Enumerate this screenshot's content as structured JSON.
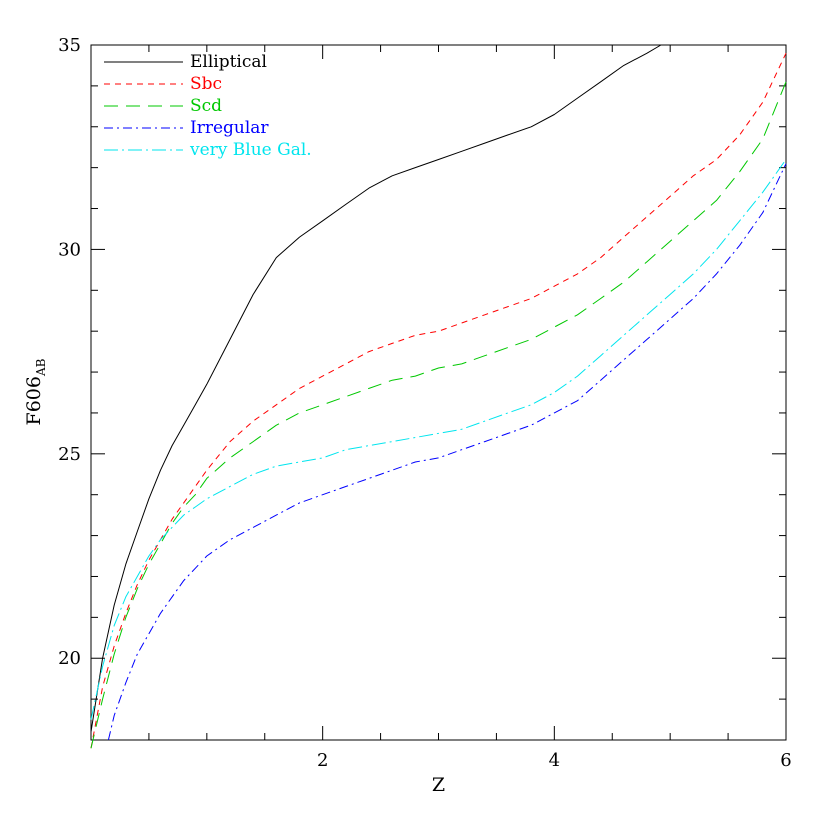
{
  "chart_data": {
    "type": "line",
    "title": "",
    "xlabel": "Z",
    "ylabel_main": "F606",
    "ylabel_sub": "AB",
    "xlim": [
      0,
      6
    ],
    "ylim": [
      18,
      35
    ],
    "x_ticks": [
      2,
      4,
      6
    ],
    "x_tick_labels": [
      "2",
      "4",
      "6"
    ],
    "y_ticks": [
      20,
      25,
      30,
      35
    ],
    "y_tick_labels": [
      "20",
      "25",
      "30",
      "35"
    ],
    "grid": false,
    "legend_position": "top-left",
    "series": [
      {
        "name": "Elliptical",
        "color": "#000000",
        "dash": "solid",
        "x": [
          0.0,
          0.1,
          0.2,
          0.3,
          0.4,
          0.5,
          0.6,
          0.7,
          0.8,
          0.9,
          1.0,
          1.2,
          1.4,
          1.6,
          1.8,
          2.0,
          2.2,
          2.4,
          2.6,
          2.8,
          3.0,
          3.2,
          3.4,
          3.6,
          3.8,
          4.0,
          4.2,
          4.4,
          4.6,
          4.8,
          4.92
        ],
        "y": [
          18.2,
          20.0,
          21.3,
          22.3,
          23.1,
          23.9,
          24.6,
          25.2,
          25.7,
          26.2,
          26.7,
          27.8,
          28.9,
          29.8,
          30.3,
          30.7,
          31.1,
          31.5,
          31.8,
          32.0,
          32.2,
          32.4,
          32.6,
          32.8,
          33.0,
          33.3,
          33.7,
          34.1,
          34.5,
          34.8,
          35.0
        ]
      },
      {
        "name": "Sbc",
        "color": "#ff0000",
        "dash": "6,5",
        "x": [
          0.0,
          0.1,
          0.2,
          0.3,
          0.4,
          0.5,
          0.6,
          0.7,
          0.8,
          0.9,
          1.0,
          1.2,
          1.4,
          1.6,
          1.8,
          2.0,
          2.2,
          2.4,
          2.6,
          2.8,
          3.0,
          3.2,
          3.4,
          3.6,
          3.8,
          4.0,
          4.2,
          4.4,
          4.6,
          4.8,
          5.0,
          5.2,
          5.4,
          5.6,
          5.8,
          6.0
        ],
        "y": [
          17.8,
          19.3,
          20.3,
          21.1,
          21.8,
          22.4,
          22.9,
          23.4,
          23.8,
          24.2,
          24.6,
          25.3,
          25.8,
          26.2,
          26.6,
          26.9,
          27.2,
          27.5,
          27.7,
          27.9,
          28.0,
          28.2,
          28.4,
          28.6,
          28.8,
          29.1,
          29.4,
          29.8,
          30.3,
          30.8,
          31.3,
          31.8,
          32.2,
          32.8,
          33.6,
          34.8
        ]
      },
      {
        "name": "Scd",
        "color": "#00c800",
        "dash": "14,8",
        "x": [
          0.0,
          0.1,
          0.2,
          0.3,
          0.4,
          0.5,
          0.6,
          0.7,
          0.8,
          0.9,
          1.0,
          1.2,
          1.4,
          1.6,
          1.8,
          2.0,
          2.2,
          2.4,
          2.6,
          2.8,
          3.0,
          3.2,
          3.4,
          3.6,
          3.8,
          4.0,
          4.2,
          4.4,
          4.6,
          4.8,
          5.0,
          5.2,
          5.4,
          5.6,
          5.8,
          6.0
        ],
        "y": [
          17.8,
          19.0,
          20.1,
          21.0,
          21.7,
          22.3,
          22.8,
          23.3,
          23.7,
          24.0,
          24.4,
          24.9,
          25.3,
          25.7,
          26.0,
          26.2,
          26.4,
          26.6,
          26.8,
          26.9,
          27.1,
          27.2,
          27.4,
          27.6,
          27.8,
          28.1,
          28.4,
          28.8,
          29.2,
          29.7,
          30.2,
          30.7,
          31.2,
          31.9,
          32.7,
          34.1
        ]
      },
      {
        "name": "Irregular",
        "color": "#0000ff",
        "dash": "9,4,2,4",
        "x": [
          0.15,
          0.2,
          0.3,
          0.4,
          0.5,
          0.6,
          0.7,
          0.8,
          0.9,
          1.0,
          1.2,
          1.4,
          1.6,
          1.8,
          2.0,
          2.2,
          2.4,
          2.6,
          2.8,
          3.0,
          3.2,
          3.4,
          3.6,
          3.8,
          4.0,
          4.2,
          4.4,
          4.6,
          4.8,
          5.0,
          5.2,
          5.4,
          5.6,
          5.8,
          6.0
        ],
        "y": [
          18.0,
          18.6,
          19.4,
          20.1,
          20.6,
          21.1,
          21.5,
          21.9,
          22.2,
          22.5,
          22.9,
          23.2,
          23.5,
          23.8,
          24.0,
          24.2,
          24.4,
          24.6,
          24.8,
          24.9,
          25.1,
          25.3,
          25.5,
          25.7,
          26.0,
          26.3,
          26.8,
          27.3,
          27.8,
          28.3,
          28.8,
          29.4,
          30.1,
          30.9,
          32.1
        ]
      },
      {
        "name": "very Blue Gal.",
        "color": "#00e5ee",
        "dash": "14,4,2,4",
        "x": [
          0.0,
          0.1,
          0.2,
          0.3,
          0.4,
          0.5,
          0.6,
          0.7,
          0.8,
          0.9,
          1.0,
          1.2,
          1.4,
          1.6,
          1.8,
          2.0,
          2.2,
          2.4,
          2.6,
          2.8,
          3.0,
          3.2,
          3.4,
          3.6,
          3.8,
          4.0,
          4.2,
          4.4,
          4.6,
          4.8,
          5.0,
          5.2,
          5.4,
          5.6,
          5.8,
          6.0
        ],
        "y": [
          18.5,
          19.8,
          20.8,
          21.5,
          22.0,
          22.5,
          22.9,
          23.2,
          23.5,
          23.7,
          23.9,
          24.2,
          24.5,
          24.7,
          24.8,
          24.9,
          25.1,
          25.2,
          25.3,
          25.4,
          25.5,
          25.6,
          25.8,
          26.0,
          26.2,
          26.5,
          26.9,
          27.4,
          27.9,
          28.4,
          28.9,
          29.4,
          30.0,
          30.7,
          31.4,
          32.2
        ]
      }
    ]
  }
}
